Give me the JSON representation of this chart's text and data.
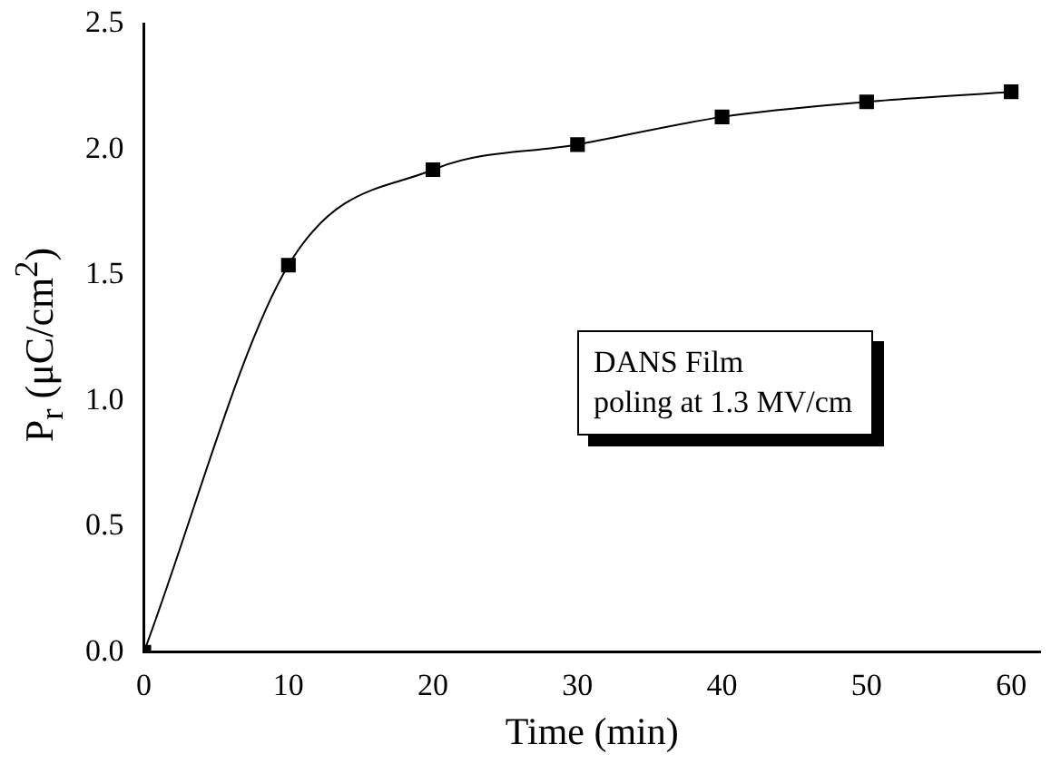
{
  "chart_data": {
    "type": "line",
    "xlabel": "Time (min)",
    "ylabel": "P$_{r}$ (μC/cm$^{2}$)",
    "x": [
      0,
      10,
      20,
      30,
      40,
      50,
      60
    ],
    "series": [
      {
        "color": "#000000",
        "values": [
          0,
          1.54,
          1.92,
          2.02,
          2.13,
          2.19,
          2.23
        ]
      }
    ],
    "xlim": [
      0,
      62
    ],
    "xticks": [
      0,
      10,
      20,
      30,
      40,
      50,
      60
    ],
    "ylim": [
      0,
      2.5
    ],
    "yticks": [
      {
        "value": 0,
        "label": "0.0"
      },
      {
        "value": 0.5,
        "label": "0.5"
      },
      {
        "value": 1,
        "label": "1.0"
      },
      {
        "value": 1.5,
        "label": "1.5"
      },
      {
        "value": 2,
        "label": "2.0"
      },
      {
        "value": 2.5,
        "label": "2.5"
      }
    ],
    "marker": "square",
    "line_style": "solid",
    "grid": false,
    "legend": false,
    "annotations": [
      "DANS Film\npoling at 1.3 MV/cm"
    ]
  }
}
